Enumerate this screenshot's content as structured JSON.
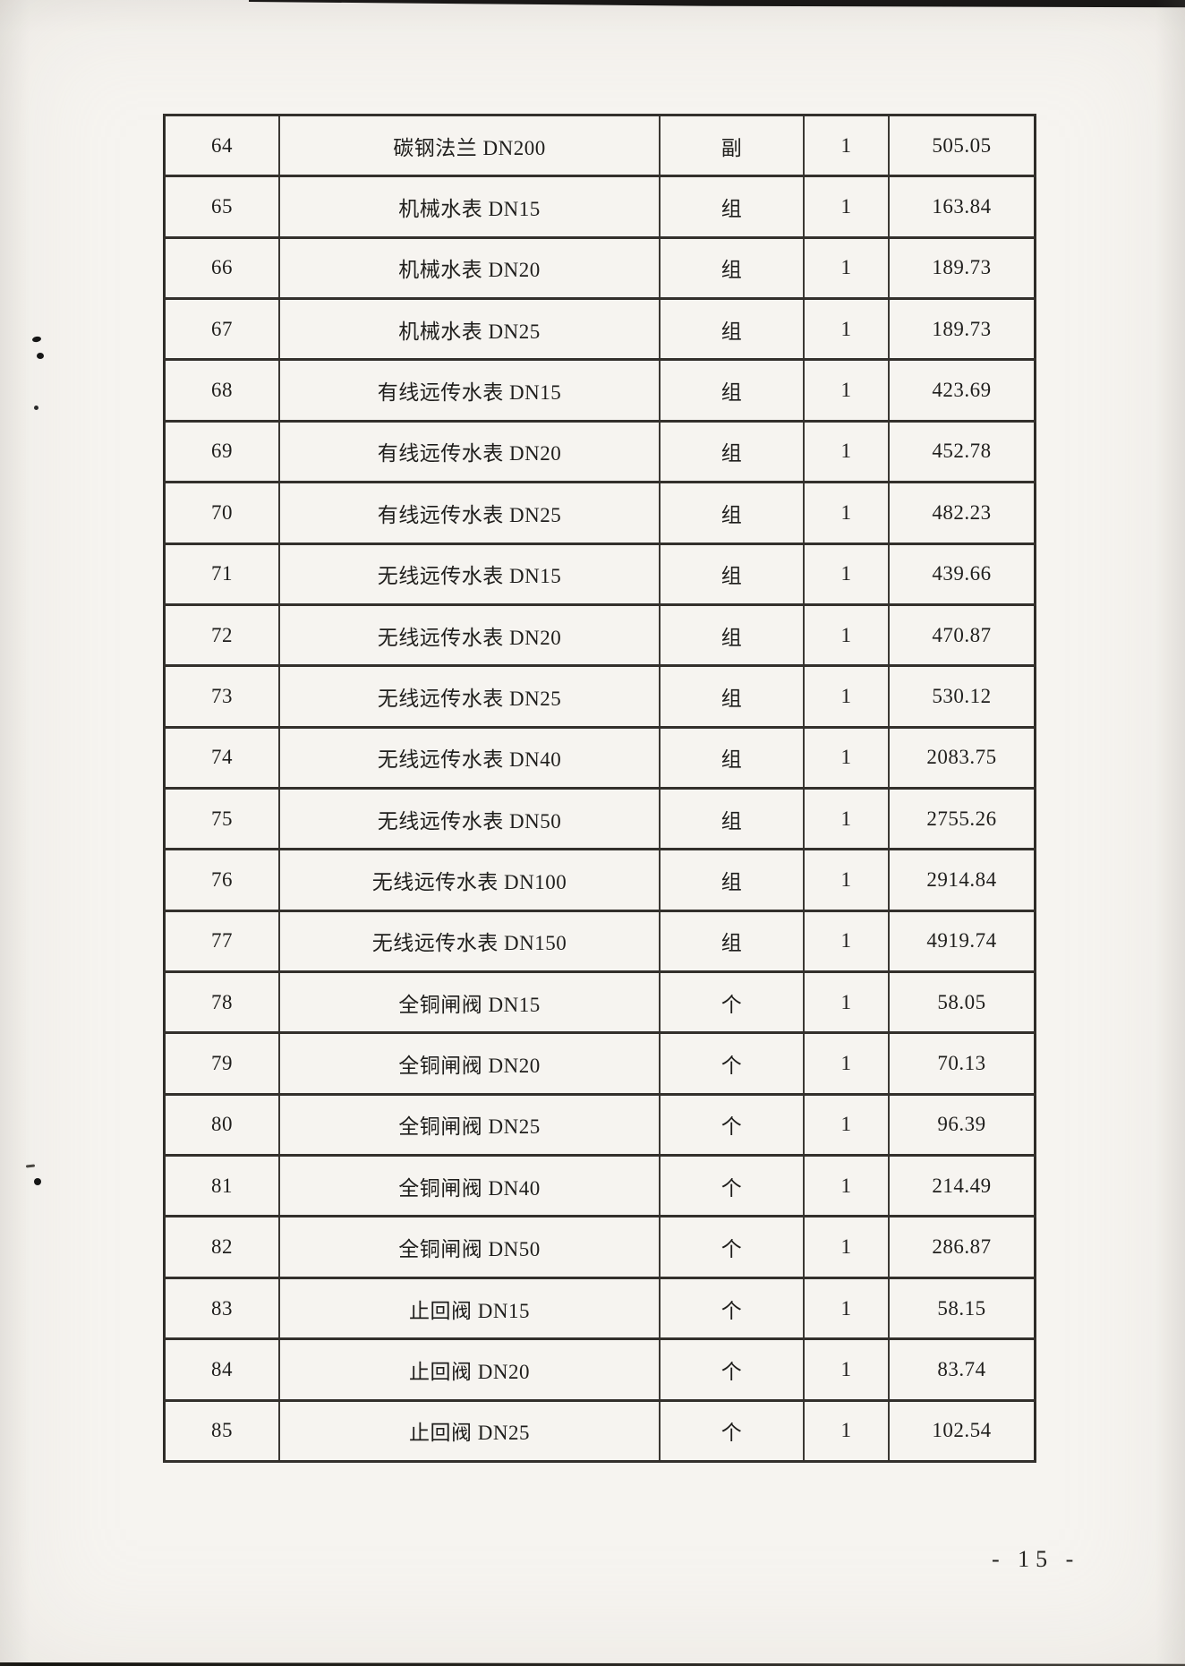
{
  "page": {
    "footer_page_number": "- 15 -"
  },
  "table": {
    "rows": [
      {
        "no": "64",
        "name": "碳钢法兰 DN200",
        "unit": "副",
        "qty": "1",
        "price": "505.05"
      },
      {
        "no": "65",
        "name": "机械水表 DN15",
        "unit": "组",
        "qty": "1",
        "price": "163.84"
      },
      {
        "no": "66",
        "name": "机械水表 DN20",
        "unit": "组",
        "qty": "1",
        "price": "189.73"
      },
      {
        "no": "67",
        "name": "机械水表 DN25",
        "unit": "组",
        "qty": "1",
        "price": "189.73"
      },
      {
        "no": "68",
        "name": "有线远传水表 DN15",
        "unit": "组",
        "qty": "1",
        "price": "423.69"
      },
      {
        "no": "69",
        "name": "有线远传水表 DN20",
        "unit": "组",
        "qty": "1",
        "price": "452.78"
      },
      {
        "no": "70",
        "name": "有线远传水表 DN25",
        "unit": "组",
        "qty": "1",
        "price": "482.23"
      },
      {
        "no": "71",
        "name": "无线远传水表 DN15",
        "unit": "组",
        "qty": "1",
        "price": "439.66"
      },
      {
        "no": "72",
        "name": "无线远传水表 DN20",
        "unit": "组",
        "qty": "1",
        "price": "470.87"
      },
      {
        "no": "73",
        "name": "无线远传水表 DN25",
        "unit": "组",
        "qty": "1",
        "price": "530.12"
      },
      {
        "no": "74",
        "name": "无线远传水表 DN40",
        "unit": "组",
        "qty": "1",
        "price": "2083.75"
      },
      {
        "no": "75",
        "name": "无线远传水表 DN50",
        "unit": "组",
        "qty": "1",
        "price": "2755.26"
      },
      {
        "no": "76",
        "name": "无线远传水表 DN100",
        "unit": "组",
        "qty": "1",
        "price": "2914.84"
      },
      {
        "no": "77",
        "name": "无线远传水表 DN150",
        "unit": "组",
        "qty": "1",
        "price": "4919.74"
      },
      {
        "no": "78",
        "name": "全铜闸阀 DN15",
        "unit": "个",
        "qty": "1",
        "price": "58.05"
      },
      {
        "no": "79",
        "name": "全铜闸阀 DN20",
        "unit": "个",
        "qty": "1",
        "price": "70.13"
      },
      {
        "no": "80",
        "name": "全铜闸阀 DN25",
        "unit": "个",
        "qty": "1",
        "price": "96.39"
      },
      {
        "no": "81",
        "name": "全铜闸阀 DN40",
        "unit": "个",
        "qty": "1",
        "price": "214.49"
      },
      {
        "no": "82",
        "name": "全铜闸阀 DN50",
        "unit": "个",
        "qty": "1",
        "price": "286.87"
      },
      {
        "no": "83",
        "name": "止回阀 DN15",
        "unit": "个",
        "qty": "1",
        "price": "58.15"
      },
      {
        "no": "84",
        "name": "止回阀 DN20",
        "unit": "个",
        "qty": "1",
        "price": "83.74"
      },
      {
        "no": "85",
        "name": "止回阀 DN25",
        "unit": "个",
        "qty": "1",
        "price": "102.54"
      }
    ]
  }
}
